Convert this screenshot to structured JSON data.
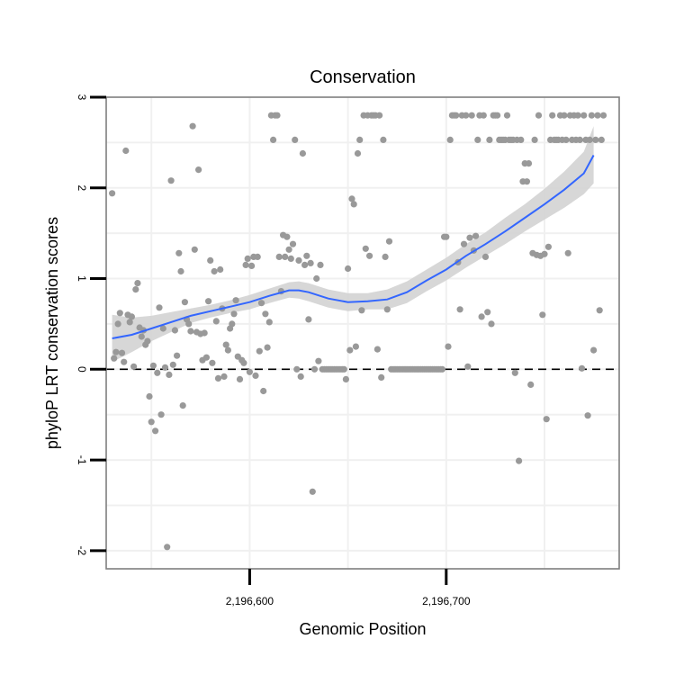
{
  "chart_data": {
    "type": "scatter",
    "title": "Conservation",
    "xlabel": "Genomic Position",
    "ylabel": "phyloP LRT conservation scores",
    "xlim": [
      2196527,
      2196788
    ],
    "ylim": [
      -2.2,
      3.0
    ],
    "x_ticks": [
      {
        "value": 2196600,
        "label": "2,196,600"
      },
      {
        "value": 2196700,
        "label": "2,196,700"
      }
    ],
    "y_ticks": [
      {
        "value": -2,
        "label": "-2"
      },
      {
        "value": -1,
        "label": "-1"
      },
      {
        "value": 0,
        "label": "0"
      },
      {
        "value": 1,
        "label": "1"
      },
      {
        "value": 2,
        "label": "2"
      },
      {
        "value": 3,
        "label": "3"
      }
    ],
    "grid": true,
    "reference_line": {
      "y": 0,
      "style": "dashed"
    },
    "colors": {
      "points": "#999999",
      "smooth_line": "#3366ff",
      "confidence_band": "#d3d3d3",
      "panel_border": "#7f7f7f",
      "grid": "#f0f0f0"
    },
    "points": [
      [
        2196530,
        1.94
      ],
      [
        2196531,
        0.12
      ],
      [
        2196532,
        0.19
      ],
      [
        2196533,
        0.5
      ],
      [
        2196534,
        0.62
      ],
      [
        2196535,
        0.18
      ],
      [
        2196536,
        0.08
      ],
      [
        2196537,
        2.41
      ],
      [
        2196538,
        0.6
      ],
      [
        2196539,
        0.52
      ],
      [
        2196540,
        0.58
      ],
      [
        2196541,
        0.03
      ],
      [
        2196542,
        0.88
      ],
      [
        2196543,
        0.95
      ],
      [
        2196544,
        0.46
      ],
      [
        2196545,
        0.36
      ],
      [
        2196546,
        0.43
      ],
      [
        2196547,
        0.27
      ],
      [
        2196548,
        0.31
      ],
      [
        2196549,
        -0.3
      ],
      [
        2196550,
        -0.58
      ],
      [
        2196551,
        0.04
      ],
      [
        2196552,
        -0.68
      ],
      [
        2196553,
        -0.04
      ],
      [
        2196554,
        0.68
      ],
      [
        2196555,
        -0.5
      ],
      [
        2196556,
        0.45
      ],
      [
        2196557,
        0.02
      ],
      [
        2196558,
        -1.96
      ],
      [
        2196559,
        -0.06
      ],
      [
        2196560,
        2.08
      ],
      [
        2196561,
        0.05
      ],
      [
        2196562,
        0.43
      ],
      [
        2196563,
        0.15
      ],
      [
        2196564,
        1.28
      ],
      [
        2196565,
        1.08
      ],
      [
        2196566,
        -0.4
      ],
      [
        2196567,
        0.74
      ],
      [
        2196568,
        0.55
      ],
      [
        2196569,
        0.5
      ],
      [
        2196570,
        0.42
      ],
      [
        2196571,
        2.68
      ],
      [
        2196572,
        1.32
      ],
      [
        2196573,
        0.41
      ],
      [
        2196574,
        2.2
      ],
      [
        2196575,
        0.39
      ],
      [
        2196576,
        0.1
      ],
      [
        2196577,
        0.4
      ],
      [
        2196578,
        0.13
      ],
      [
        2196579,
        0.75
      ],
      [
        2196580,
        1.2
      ],
      [
        2196581,
        0.07
      ],
      [
        2196582,
        1.08
      ],
      [
        2196583,
        0.53
      ],
      [
        2196584,
        -0.1
      ],
      [
        2196585,
        1.1
      ],
      [
        2196586,
        0.67
      ],
      [
        2196587,
        -0.08
      ],
      [
        2196588,
        0.27
      ],
      [
        2196589,
        0.21
      ],
      [
        2196590,
        0.45
      ],
      [
        2196591,
        0.5
      ],
      [
        2196592,
        0.61
      ],
      [
        2196593,
        0.76
      ],
      [
        2196594,
        0.14
      ],
      [
        2196595,
        -0.11
      ],
      [
        2196596,
        0.1
      ],
      [
        2196597,
        0.07
      ],
      [
        2196598,
        1.15
      ],
      [
        2196599,
        1.22
      ],
      [
        2196600,
        -0.03
      ],
      [
        2196601,
        1.14
      ],
      [
        2196602,
        1.24
      ],
      [
        2196603,
        -0.07
      ],
      [
        2196604,
        1.24
      ],
      [
        2196605,
        0.2
      ],
      [
        2196606,
        0.73
      ],
      [
        2196607,
        -0.24
      ],
      [
        2196608,
        0.61
      ],
      [
        2196609,
        0.24
      ],
      [
        2196610,
        0.52
      ],
      [
        2196611,
        2.8
      ],
      [
        2196612,
        2.53
      ],
      [
        2196613,
        2.8
      ],
      [
        2196614,
        2.8
      ],
      [
        2196615,
        1.24
      ],
      [
        2196616,
        0.86
      ],
      [
        2196617,
        1.48
      ],
      [
        2196618,
        1.24
      ],
      [
        2196619,
        1.46
      ],
      [
        2196620,
        1.32
      ],
      [
        2196621,
        1.22
      ],
      [
        2196622,
        1.38
      ],
      [
        2196623,
        2.53
      ],
      [
        2196624,
        0.0
      ],
      [
        2196625,
        1.2
      ],
      [
        2196626,
        -0.08
      ],
      [
        2196627,
        2.38
      ],
      [
        2196628,
        1.15
      ],
      [
        2196629,
        1.25
      ],
      [
        2196630,
        0.55
      ],
      [
        2196631,
        1.17
      ],
      [
        2196632,
        -1.35
      ],
      [
        2196633,
        0.0
      ],
      [
        2196634,
        1.0
      ],
      [
        2196635,
        0.09
      ],
      [
        2196636,
        1.15
      ],
      [
        2196637,
        0.0
      ],
      [
        2196638,
        0.0
      ],
      [
        2196639,
        0.0
      ],
      [
        2196640,
        0.0
      ],
      [
        2196641,
        0.0
      ],
      [
        2196642,
        0.0
      ],
      [
        2196643,
        0.0
      ],
      [
        2196644,
        0.0
      ],
      [
        2196645,
        0.0
      ],
      [
        2196646,
        0.0
      ],
      [
        2196647,
        0.0
      ],
      [
        2196648,
        0.0
      ],
      [
        2196649,
        -0.11
      ],
      [
        2196650,
        1.11
      ],
      [
        2196651,
        0.21
      ],
      [
        2196652,
        1.88
      ],
      [
        2196653,
        1.82
      ],
      [
        2196654,
        0.25
      ],
      [
        2196655,
        2.38
      ],
      [
        2196656,
        2.53
      ],
      [
        2196657,
        0.65
      ],
      [
        2196658,
        2.8
      ],
      [
        2196659,
        1.33
      ],
      [
        2196660,
        2.8
      ],
      [
        2196661,
        1.25
      ],
      [
        2196662,
        2.8
      ],
      [
        2196663,
        2.8
      ],
      [
        2196664,
        2.8
      ],
      [
        2196665,
        0.22
      ],
      [
        2196666,
        2.8
      ],
      [
        2196667,
        -0.09
      ],
      [
        2196668,
        2.53
      ],
      [
        2196669,
        1.24
      ],
      [
        2196670,
        0.66
      ],
      [
        2196671,
        1.41
      ],
      [
        2196672,
        0.0
      ],
      [
        2196673,
        0.0
      ],
      [
        2196674,
        0.0
      ],
      [
        2196675,
        0.0
      ],
      [
        2196676,
        0.0
      ],
      [
        2196677,
        0.0
      ],
      [
        2196678,
        0.0
      ],
      [
        2196679,
        0.0
      ],
      [
        2196680,
        0.0
      ],
      [
        2196681,
        0.0
      ],
      [
        2196682,
        0.0
      ],
      [
        2196683,
        0.0
      ],
      [
        2196684,
        0.0
      ],
      [
        2196685,
        0.0
      ],
      [
        2196686,
        0.0
      ],
      [
        2196687,
        0.0
      ],
      [
        2196688,
        0.0
      ],
      [
        2196689,
        0.0
      ],
      [
        2196690,
        0.0
      ],
      [
        2196691,
        0.0
      ],
      [
        2196692,
        0.0
      ],
      [
        2196693,
        0.0
      ],
      [
        2196694,
        0.0
      ],
      [
        2196695,
        0.0
      ],
      [
        2196696,
        0.0
      ],
      [
        2196697,
        0.0
      ],
      [
        2196698,
        0.0
      ],
      [
        2196699,
        1.46
      ],
      [
        2196700,
        1.46
      ],
      [
        2196701,
        0.25
      ],
      [
        2196702,
        2.53
      ],
      [
        2196703,
        2.8
      ],
      [
        2196704,
        2.8
      ],
      [
        2196705,
        2.8
      ],
      [
        2196706,
        1.18
      ],
      [
        2196707,
        0.66
      ],
      [
        2196708,
        2.8
      ],
      [
        2196709,
        1.38
      ],
      [
        2196710,
        2.8
      ],
      [
        2196711,
        0.03
      ],
      [
        2196712,
        1.45
      ],
      [
        2196713,
        2.8
      ],
      [
        2196714,
        1.31
      ],
      [
        2196715,
        1.47
      ],
      [
        2196716,
        2.53
      ],
      [
        2196717,
        2.8
      ],
      [
        2196718,
        0.58
      ],
      [
        2196719,
        2.8
      ],
      [
        2196720,
        1.24
      ],
      [
        2196721,
        0.63
      ],
      [
        2196722,
        2.53
      ],
      [
        2196723,
        0.5
      ],
      [
        2196724,
        2.8
      ],
      [
        2196725,
        2.8
      ],
      [
        2196726,
        2.8
      ],
      [
        2196727,
        2.53
      ],
      [
        2196728,
        2.53
      ],
      [
        2196729,
        2.53
      ],
      [
        2196730,
        2.53
      ],
      [
        2196731,
        2.8
      ],
      [
        2196732,
        2.53
      ],
      [
        2196733,
        2.53
      ],
      [
        2196734,
        2.53
      ],
      [
        2196735,
        -0.04
      ],
      [
        2196736,
        2.53
      ],
      [
        2196737,
        -1.01
      ],
      [
        2196738,
        2.53
      ],
      [
        2196739,
        2.07
      ],
      [
        2196740,
        2.27
      ],
      [
        2196741,
        2.07
      ],
      [
        2196742,
        2.27
      ],
      [
        2196743,
        -0.17
      ],
      [
        2196744,
        1.28
      ],
      [
        2196745,
        2.53
      ],
      [
        2196746,
        1.26
      ],
      [
        2196747,
        2.8
      ],
      [
        2196748,
        1.25
      ],
      [
        2196749,
        0.6
      ],
      [
        2196750,
        1.27
      ],
      [
        2196751,
        -0.55
      ],
      [
        2196752,
        1.35
      ],
      [
        2196753,
        2.53
      ],
      [
        2196754,
        2.8
      ],
      [
        2196755,
        2.53
      ],
      [
        2196756,
        2.53
      ],
      [
        2196757,
        2.53
      ],
      [
        2196758,
        2.8
      ],
      [
        2196759,
        2.53
      ],
      [
        2196760,
        2.8
      ],
      [
        2196761,
        2.53
      ],
      [
        2196762,
        1.28
      ],
      [
        2196763,
        2.8
      ],
      [
        2196764,
        2.53
      ],
      [
        2196765,
        2.8
      ],
      [
        2196766,
        2.53
      ],
      [
        2196767,
        2.8
      ],
      [
        2196768,
        2.53
      ],
      [
        2196769,
        0.01
      ],
      [
        2196770,
        2.8
      ],
      [
        2196771,
        2.53
      ],
      [
        2196772,
        -0.51
      ],
      [
        2196773,
        2.53
      ],
      [
        2196774,
        2.8
      ],
      [
        2196775,
        0.21
      ],
      [
        2196776,
        2.53
      ],
      [
        2196777,
        2.8
      ],
      [
        2196778,
        0.65
      ],
      [
        2196779,
        2.53
      ],
      [
        2196780,
        2.8
      ]
    ],
    "smooth_fit": {
      "x": [
        2196530,
        2196540,
        2196550,
        2196560,
        2196570,
        2196580,
        2196590,
        2196600,
        2196610,
        2196620,
        2196625,
        2196630,
        2196640,
        2196650,
        2196660,
        2196670,
        2196680,
        2196690,
        2196700,
        2196710,
        2196720,
        2196730,
        2196740,
        2196750,
        2196760,
        2196770,
        2196775
      ],
      "y": [
        0.34,
        0.38,
        0.45,
        0.52,
        0.59,
        0.64,
        0.69,
        0.74,
        0.81,
        0.87,
        0.87,
        0.85,
        0.78,
        0.74,
        0.75,
        0.77,
        0.85,
        0.98,
        1.1,
        1.25,
        1.38,
        1.52,
        1.67,
        1.82,
        1.98,
        2.16,
        2.36
      ],
      "lower": [
        0.08,
        0.19,
        0.31,
        0.41,
        0.51,
        0.57,
        0.62,
        0.66,
        0.73,
        0.79,
        0.78,
        0.75,
        0.68,
        0.64,
        0.66,
        0.66,
        0.73,
        0.86,
        0.98,
        1.12,
        1.25,
        1.38,
        1.52,
        1.65,
        1.78,
        1.93,
        2.05
      ],
      "upper": [
        0.6,
        0.57,
        0.59,
        0.63,
        0.67,
        0.71,
        0.76,
        0.82,
        0.89,
        0.96,
        0.97,
        0.95,
        0.88,
        0.84,
        0.84,
        0.88,
        0.97,
        1.1,
        1.23,
        1.38,
        1.51,
        1.67,
        1.82,
        1.99,
        2.18,
        2.4,
        2.68
      ]
    }
  }
}
